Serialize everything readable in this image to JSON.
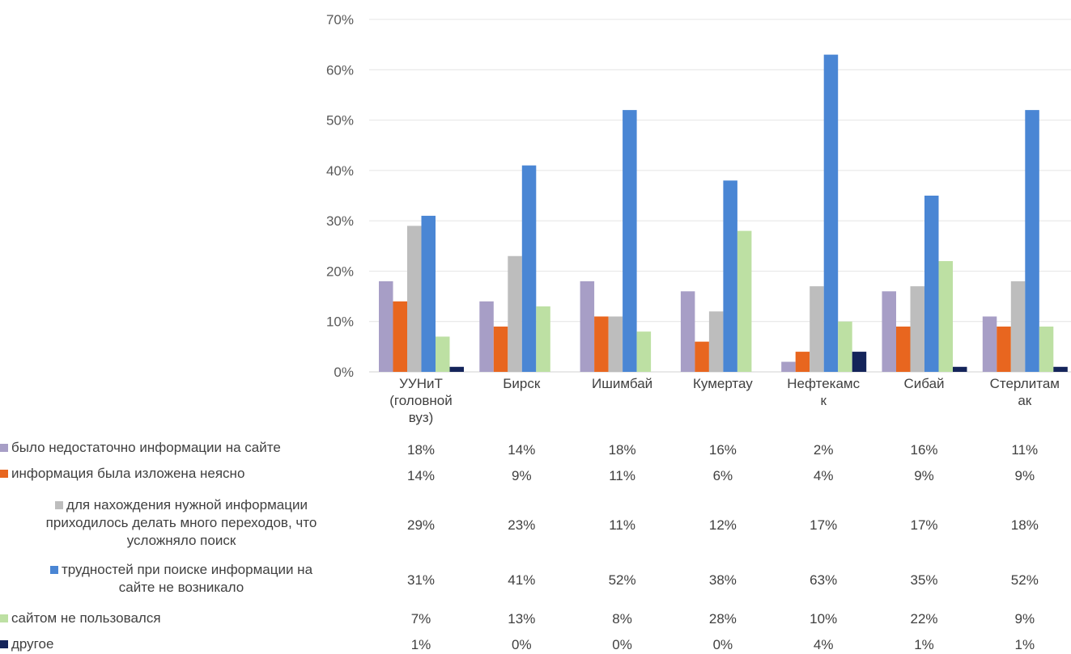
{
  "chart_data": {
    "type": "bar",
    "categories": [
      "УУНиТ (головной вуз)",
      "Бирск",
      "Ишимбай",
      "Кумертау",
      "Нефтекамск",
      "Сибай",
      "Стерлитамак"
    ],
    "category_lines": [
      [
        "УУНиТ",
        "(головной",
        "вуз)"
      ],
      [
        "Бирск"
      ],
      [
        "Ишимбай"
      ],
      [
        "Кумертау"
      ],
      [
        "Нефтекамс",
        "к"
      ],
      [
        "Сибай"
      ],
      [
        "Стерлитам",
        "ак"
      ]
    ],
    "ylim": [
      0,
      70
    ],
    "yticks": [
      "0%",
      "10%",
      "20%",
      "30%",
      "40%",
      "50%",
      "60%",
      "70%"
    ],
    "grid": true,
    "legend_placement": "bottom (data table)",
    "series": [
      {
        "name": "было недостаточно информации на сайте",
        "name_lines": [
          "было недостаточно информации на сайте"
        ],
        "color": "#a79ec6",
        "values": [
          18,
          14,
          18,
          16,
          2,
          16,
          11
        ],
        "labels": [
          "18%",
          "14%",
          "18%",
          "16%",
          "2%",
          "16%",
          "11%"
        ]
      },
      {
        "name": "информация была изложена неясно",
        "name_lines": [
          "информация была изложена неясно"
        ],
        "color": "#e8661f",
        "values": [
          14,
          9,
          11,
          6,
          4,
          9,
          9
        ],
        "labels": [
          "14%",
          "9%",
          "11%",
          "6%",
          "4%",
          "9%",
          "9%"
        ]
      },
      {
        "name": "для нахождения нужной информации приходилось делать много переходов, что усложняло поиск",
        "name_lines": [
          "для нахождения нужной информации",
          "приходилось делать много переходов, что",
          "усложняло поиск"
        ],
        "color": "#bdbdbd",
        "values": [
          29,
          23,
          11,
          12,
          17,
          17,
          18
        ],
        "labels": [
          "29%",
          "23%",
          "11%",
          "12%",
          "17%",
          "17%",
          "18%"
        ]
      },
      {
        "name": "трудностей при поиске информации на сайте не возникало",
        "name_lines": [
          "трудностей при поиске информации на",
          "сайте не возникало"
        ],
        "color": "#4a86d4",
        "values": [
          31,
          41,
          52,
          38,
          63,
          35,
          52
        ],
        "labels": [
          "31%",
          "41%",
          "52%",
          "38%",
          "63%",
          "35%",
          "52%"
        ]
      },
      {
        "name": "сайтом не пользовался",
        "name_lines": [
          "сайтом не пользовался"
        ],
        "color": "#bde0a3",
        "values": [
          7,
          13,
          8,
          28,
          10,
          22,
          9
        ],
        "labels": [
          "7%",
          "13%",
          "8%",
          "28%",
          "10%",
          "22%",
          "9%"
        ]
      },
      {
        "name": "другое",
        "name_lines": [
          "другое"
        ],
        "color": "#14245a",
        "values": [
          1,
          0,
          0,
          0,
          4,
          1,
          1
        ],
        "labels": [
          "1%",
          "0%",
          "0%",
          "0%",
          "4%",
          "1%",
          "1%"
        ]
      }
    ]
  }
}
